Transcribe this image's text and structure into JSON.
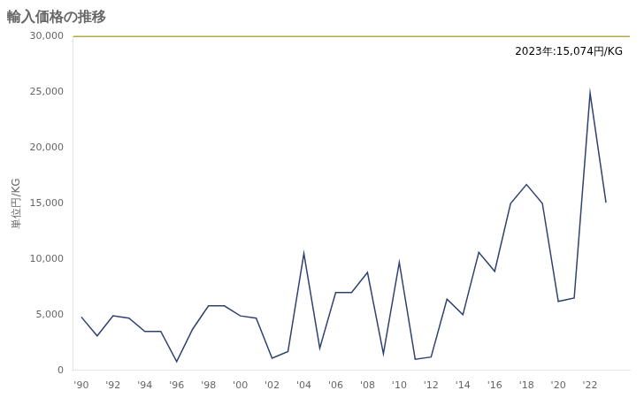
{
  "chart_data": {
    "type": "line",
    "title": "輸入価格の推移",
    "ylabel": "単位円/KG",
    "annotation": "2023年:15,074円/KG",
    "x": [
      1990,
      1991,
      1992,
      1993,
      1994,
      1995,
      1996,
      1997,
      1998,
      1999,
      2000,
      2001,
      2002,
      2003,
      2004,
      2005,
      2006,
      2007,
      2008,
      2009,
      2010,
      2011,
      2012,
      2013,
      2014,
      2015,
      2016,
      2017,
      2018,
      2019,
      2020,
      2021,
      2022,
      2023
    ],
    "values": [
      4800,
      3100,
      4900,
      4700,
      3500,
      3500,
      800,
      3700,
      5800,
      5800,
      4900,
      4700,
      1100,
      1700,
      10500,
      2000,
      7000,
      7000,
      8800,
      1500,
      9700,
      1000,
      1200,
      6400,
      5000,
      10600,
      8900,
      15000,
      16700,
      15000,
      6200,
      6500,
      24900,
      15074
    ],
    "color": "#2e4272",
    "xlim": [
      1989.5,
      2024.5
    ],
    "xticks": [
      {
        "value": 1990,
        "label": "'90"
      },
      {
        "value": 1992,
        "label": "'92"
      },
      {
        "value": 1994,
        "label": "'94"
      },
      {
        "value": 1996,
        "label": "'96"
      },
      {
        "value": 1998,
        "label": "'98"
      },
      {
        "value": 2000,
        "label": "'00"
      },
      {
        "value": 2002,
        "label": "'02"
      },
      {
        "value": 2004,
        "label": "'04"
      },
      {
        "value": 2006,
        "label": "'06"
      },
      {
        "value": 2008,
        "label": "'08"
      },
      {
        "value": 2010,
        "label": "'10"
      },
      {
        "value": 2012,
        "label": "'12"
      },
      {
        "value": 2014,
        "label": "'14"
      },
      {
        "value": 2016,
        "label": "'16"
      },
      {
        "value": 2018,
        "label": "'18"
      },
      {
        "value": 2020,
        "label": "'20"
      },
      {
        "value": 2022,
        "label": "'22"
      }
    ],
    "ylim": [
      0,
      30000
    ],
    "yticks": [
      0,
      {
        "value": 5000,
        "label": "5,000"
      },
      {
        "value": 10000,
        "label": "10,000"
      },
      {
        "value": 15000,
        "label": "15,000"
      },
      {
        "value": 20000,
        "label": "20,000"
      },
      {
        "value": 25000,
        "label": "25,000"
      },
      {
        "value": 30000,
        "label": "30,000"
      }
    ],
    "grid": false
  }
}
